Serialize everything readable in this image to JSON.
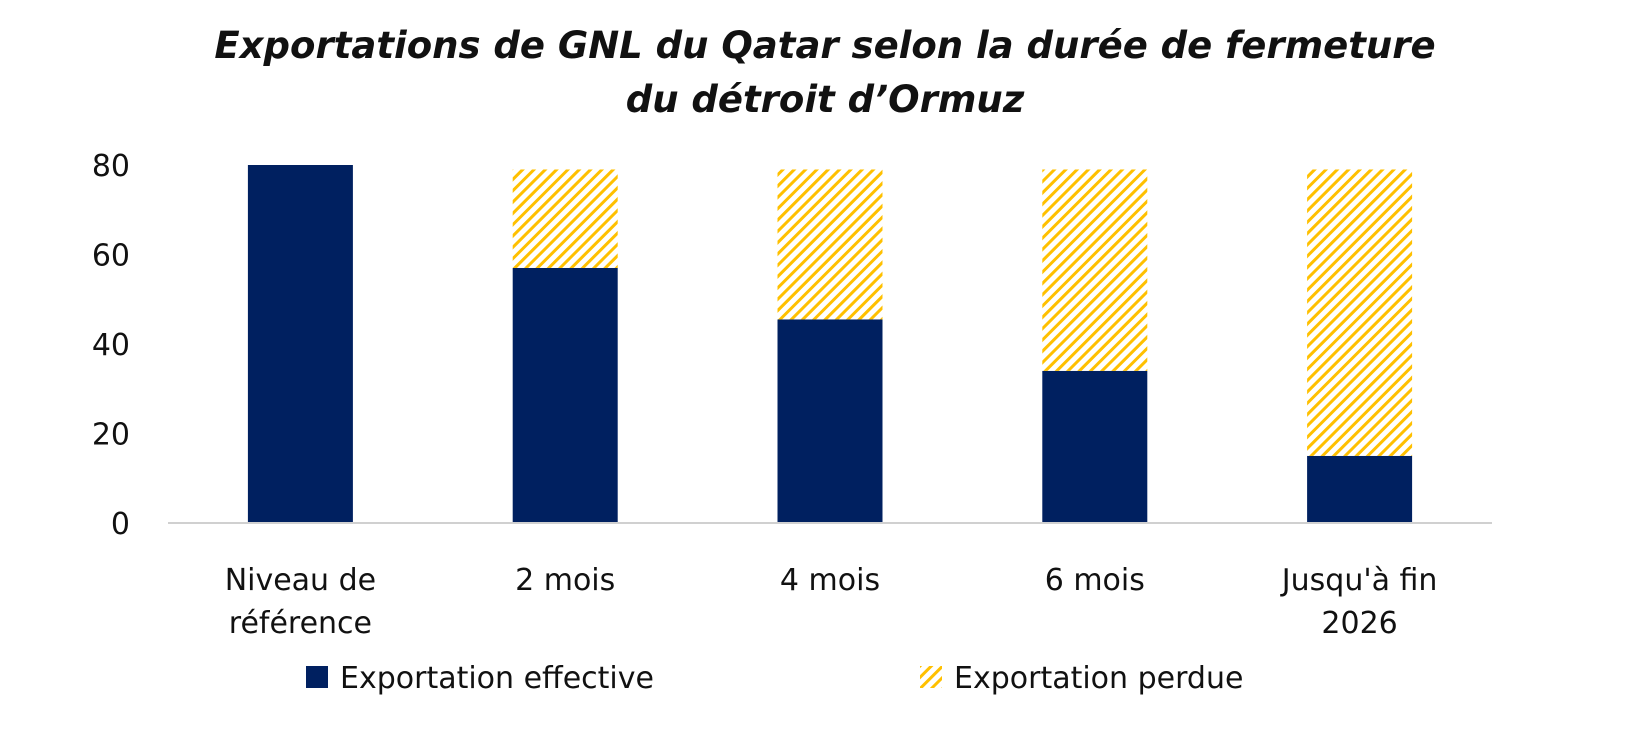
{
  "chart_data": {
    "type": "bar",
    "stacked": true,
    "title": [
      "Exportations de GNL du Qatar selon la durée de fermeture",
      "du  détroit d’Ormuz"
    ],
    "xlabel": "",
    "ylabel": "",
    "categories": [
      [
        "Niveau de",
        "référence"
      ],
      [
        "2 mois"
      ],
      [
        "4 mois"
      ],
      [
        "6 mois"
      ],
      [
        "Jusqu'à fin",
        "2026"
      ]
    ],
    "ylim": [
      0,
      80
    ],
    "yticks": [
      0,
      20,
      40,
      60,
      80
    ],
    "grid": false,
    "legend_position": "bottom",
    "series": [
      {
        "name": "Exportation effective",
        "values": [
          80,
          57,
          45.5,
          34,
          15
        ],
        "color": "#002060",
        "pattern": "solid"
      },
      {
        "name": "Exportation perdue",
        "values": [
          0,
          22,
          33.5,
          45,
          64
        ],
        "color": "#FFC000",
        "pattern": "diagonal-hatch"
      }
    ]
  }
}
